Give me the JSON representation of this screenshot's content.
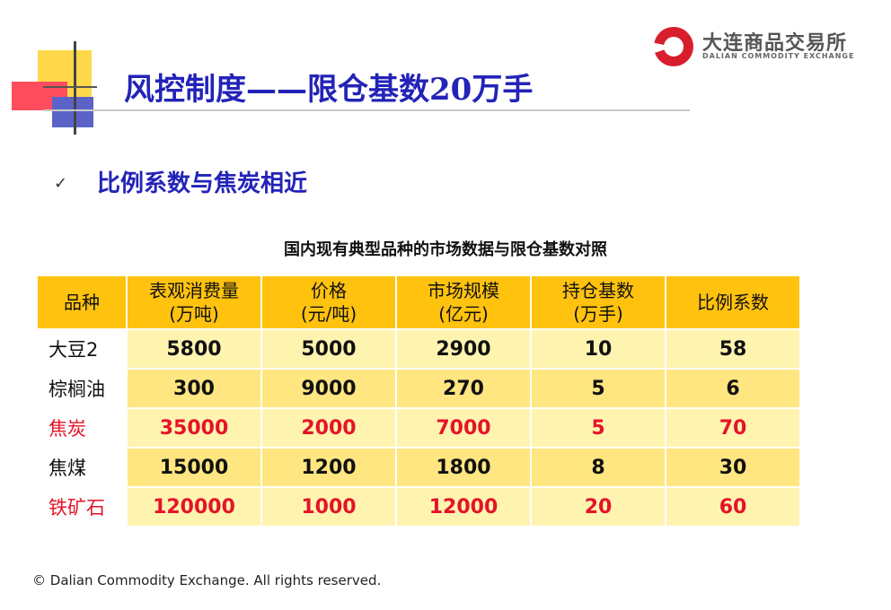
{
  "title": "风控制度——限仓基数20万手",
  "logo": {
    "cn": "大连商品交易所",
    "en": "DALIAN COMMODITY EXCHANGE"
  },
  "bullet": {
    "check": "✓",
    "text": "比例系数与焦炭相近"
  },
  "table": {
    "caption": "国内现有典型品种的市场数据与限仓基数对照",
    "headers": [
      {
        "line1": "品种",
        "line2": ""
      },
      {
        "line1": "表观消费量",
        "line2": "(万吨)"
      },
      {
        "line1": "价格",
        "line2": "(元/吨)"
      },
      {
        "line1": "市场规模",
        "line2": "(亿元)"
      },
      {
        "line1": "持仓基数",
        "line2": "(万手)"
      },
      {
        "line1": "比例系数",
        "line2": ""
      }
    ],
    "rows": [
      {
        "name": "大豆2",
        "consumption": "5800",
        "price": "5000",
        "scale": "2900",
        "base": "10",
        "ratio": "58",
        "highlight": false
      },
      {
        "name": "棕榈油",
        "consumption": "300",
        "price": "9000",
        "scale": "270",
        "base": "5",
        "ratio": "6",
        "highlight": false
      },
      {
        "name": "焦炭",
        "consumption": "35000",
        "price": "2000",
        "scale": "7000",
        "base": "5",
        "ratio": "70",
        "highlight": true
      },
      {
        "name": "焦煤",
        "consumption": "15000",
        "price": "1200",
        "scale": "1800",
        "base": "8",
        "ratio": "30",
        "highlight": false
      },
      {
        "name": "铁矿石",
        "consumption": "120000",
        "price": "1000",
        "scale": "12000",
        "base": "20",
        "ratio": "60",
        "highlight": true
      }
    ]
  },
  "colors": {
    "title": "#2323b8",
    "header_bg": "#ffc20e",
    "row_light": "#fff3b0",
    "row_dark": "#ffe680",
    "highlight_text": "#e4142a"
  },
  "footer": "© Dalian Commodity Exchange. All rights reserved."
}
